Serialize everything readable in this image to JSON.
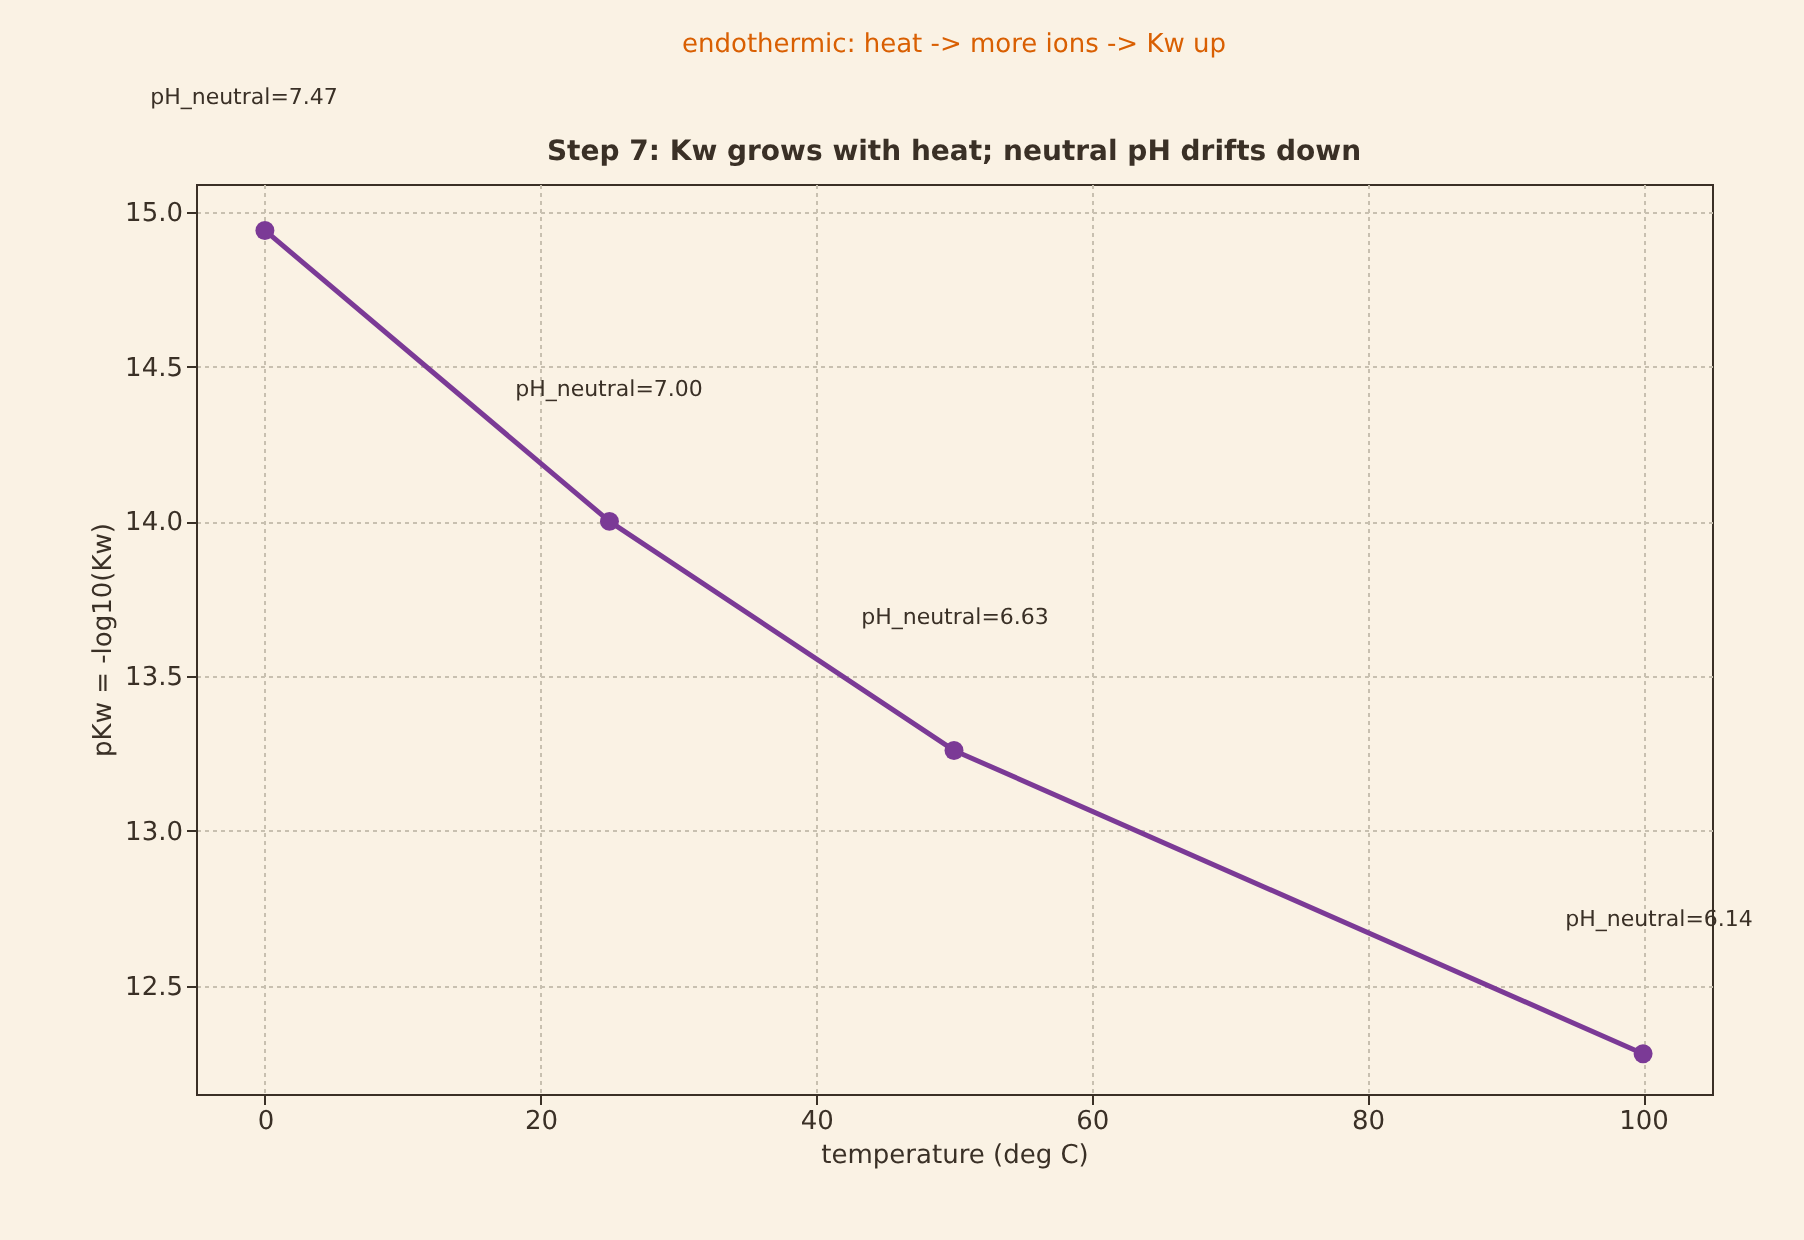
{
  "chart_data": {
    "type": "line",
    "title": "Step 7: Kw grows with heat; neutral pH drifts down",
    "xlabel": "temperature (deg C)",
    "ylabel": "pKw = -log10(Kw)",
    "x": [
      0,
      25,
      50,
      100
    ],
    "series": [
      {
        "color": "#7b3a96",
        "values": [
          14.94,
          14.0,
          13.26,
          12.28
        ]
      }
    ],
    "xlim": [
      -5,
      105
    ],
    "xticks": [
      0,
      20,
      40,
      60,
      80,
      100
    ],
    "ylim": [
      12.15,
      15.09
    ],
    "yticks": [
      12.5,
      {
        "value": 13,
        "label": "13.0"
      },
      13.5,
      {
        "value": 14,
        "label": "14.0"
      },
      14.5,
      {
        "value": 15,
        "label": "15.0"
      }
    ],
    "grid": true,
    "marker": "circle",
    "line_style": "solid",
    "annotations": [
      "endothermic: heat -> more ions -> Kw up",
      "pH_neutral=7.47",
      "pH_neutral=7.00",
      "pH_neutral=6.63",
      "pH_neutral=6.14"
    ]
  }
}
